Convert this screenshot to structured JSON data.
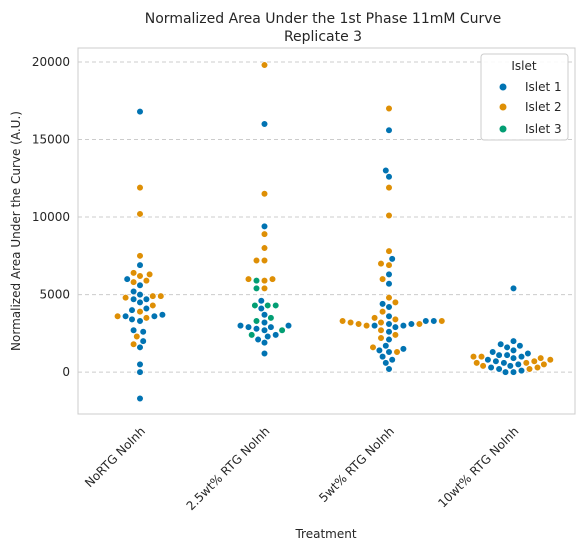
{
  "chart_data": {
    "type": "scatter",
    "subtype": "swarm",
    "title": "Normalized Area Under the 1st Phase 11mM Curve",
    "subtitle": "Replicate 3",
    "xlabel": "Treatment",
    "ylabel": "Normalized Area Under the Curve (A.U.)",
    "ylim": [
      -2700,
      20900
    ],
    "yticks": [
      0,
      5000,
      10000,
      15000,
      20000
    ],
    "grid": "horizontal dashed",
    "legend_placement": "top-right",
    "categories": [
      "NoRTG NoInh",
      "2.5wt% RTG NoInh",
      "5wt% RTG NoInh",
      "10wt% RTG NoInh"
    ],
    "legend": {
      "title": "Islet",
      "entries": [
        "Islet 1",
        "Islet 2",
        "Islet 3"
      ]
    },
    "series": [
      {
        "name": "Islet 1",
        "color": "#0173b2",
        "points": [
          {
            "category": "NoRTG NoInh",
            "values": [
              16800,
              6900,
              6000,
              5600,
              5200,
              5000,
              4700,
              4700,
              4500,
              4100,
              4000,
              3700,
              3600,
              3600,
              3400,
              3300,
              2700,
              2600,
              2000,
              1600,
              500,
              0,
              -1700
            ]
          },
          {
            "category": "2.5wt% RTG NoInh",
            "values": [
              16000,
              9400,
              4600,
              4100,
              3700,
              3200,
              3000,
              3000,
              2900,
              2900,
              2800,
              2700,
              2400,
              2300,
              2100,
              1900,
              1200
            ]
          },
          {
            "category": "5wt% RTG NoInh",
            "values": [
              15600,
              13000,
              12600,
              7300,
              6300,
              5700,
              4400,
              4200,
              3600,
              3300,
              3300,
              3100,
              3100,
              3000,
              3000,
              2900,
              2600,
              2100,
              1700,
              1500,
              1400,
              1300,
              1000,
              800,
              600,
              200
            ]
          },
          {
            "category": "10wt% RTG NoInh",
            "values": [
              5400,
              2000,
              1800,
              1700,
              1600,
              1400,
              1300,
              1200,
              1100,
              1100,
              1000,
              900,
              800,
              700,
              600,
              500,
              400,
              300,
              200,
              100,
              0,
              0
            ]
          }
        ]
      },
      {
        "name": "Islet 2",
        "color": "#de8f05",
        "points": [
          {
            "category": "NoRTG NoInh",
            "values": [
              11900,
              10200,
              7500,
              6400,
              6300,
              6200,
              5900,
              5800,
              4900,
              4900,
              4800,
              4300,
              3900,
              3600,
              3500,
              2300,
              1800
            ]
          },
          {
            "category": "2.5wt% RTG NoInh",
            "values": [
              19800,
              11500,
              8900,
              8000,
              7200,
              7200,
              6000,
              6000,
              5900,
              5400
            ]
          },
          {
            "category": "5wt% RTG NoInh",
            "values": [
              17000,
              11900,
              10100,
              7800,
              7000,
              6900,
              6000,
              4800,
              4500,
              3900,
              3500,
              3400,
              3300,
              3300,
              3200,
              3200,
              3100,
              3100,
              3000,
              2700,
              2400,
              2200,
              1600,
              1300
            ]
          },
          {
            "category": "10wt% RTG NoInh",
            "values": [
              1000,
              1000,
              900,
              800,
              700,
              600,
              600,
              500,
              400,
              300,
              200
            ]
          }
        ]
      },
      {
        "name": "Islet 3",
        "color": "#029e73",
        "points": [
          {
            "category": "2.5wt% RTG NoInh",
            "values": [
              5900,
              5400,
              4300,
              4300,
              4300,
              3500,
              3300,
              2700,
              2400
            ]
          }
        ]
      }
    ]
  }
}
